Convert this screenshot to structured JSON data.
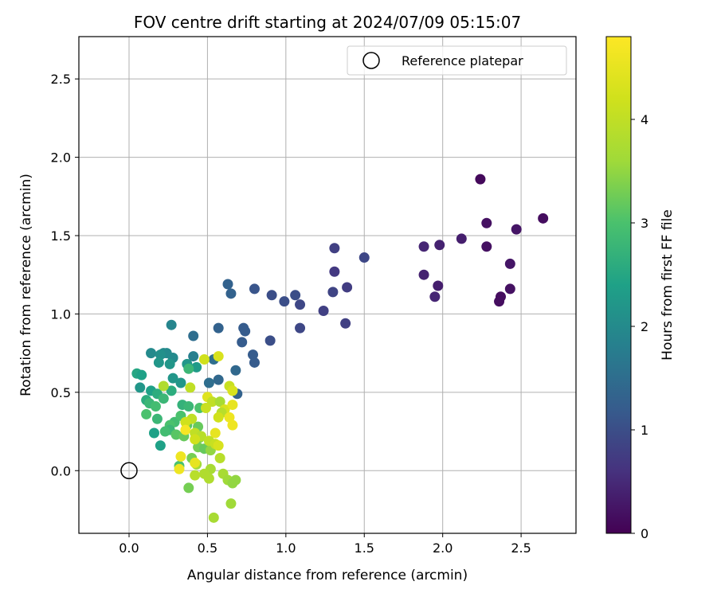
{
  "chart_data": {
    "type": "scatter",
    "title": "FOV centre drift starting at 2024/07/09 05:15:07",
    "xlabel": "Angular distance from reference (arcmin)",
    "ylabel": "Rotation from reference (arcmin)",
    "xlim": [
      -0.32,
      2.85
    ],
    "ylim": [
      -0.4,
      2.77
    ],
    "xticks": [
      "0.0",
      "0.5",
      "1.0",
      "1.5",
      "2.0",
      "2.5"
    ],
    "yticks": [
      "0.0",
      "0.5",
      "1.0",
      "1.5",
      "2.0",
      "2.5"
    ],
    "grid": true,
    "legend": {
      "placement": "top-right",
      "label": "Reference platepar"
    },
    "reference_point": {
      "x": 0.0,
      "y": 0.0
    },
    "colorbar": {
      "label": "Hours from first FF file",
      "range": [
        0,
        4.8
      ],
      "ticks": [
        "0",
        "1",
        "2",
        "3",
        "4"
      ],
      "colormap": "viridis"
    },
    "points": [
      {
        "x": 2.24,
        "y": 1.86,
        "c": 0.1
      },
      {
        "x": 2.64,
        "y": 1.61,
        "c": 0.15
      },
      {
        "x": 2.28,
        "y": 1.58,
        "c": 0.2
      },
      {
        "x": 2.47,
        "y": 1.54,
        "c": 0.25
      },
      {
        "x": 2.12,
        "y": 1.48,
        "c": 0.35
      },
      {
        "x": 1.98,
        "y": 1.44,
        "c": 0.4
      },
      {
        "x": 2.28,
        "y": 1.43,
        "c": 0.2
      },
      {
        "x": 1.88,
        "y": 1.43,
        "c": 0.45
      },
      {
        "x": 2.43,
        "y": 1.32,
        "c": 0.25
      },
      {
        "x": 1.88,
        "y": 1.25,
        "c": 0.4
      },
      {
        "x": 1.97,
        "y": 1.18,
        "c": 0.35
      },
      {
        "x": 2.43,
        "y": 1.16,
        "c": 0.2
      },
      {
        "x": 1.95,
        "y": 1.11,
        "c": 0.45
      },
      {
        "x": 2.37,
        "y": 1.11,
        "c": 0.15
      },
      {
        "x": 2.36,
        "y": 1.08,
        "c": 0.15
      },
      {
        "x": 1.31,
        "y": 1.42,
        "c": 0.8
      },
      {
        "x": 1.5,
        "y": 1.36,
        "c": 0.9
      },
      {
        "x": 1.31,
        "y": 1.27,
        "c": 0.7
      },
      {
        "x": 1.39,
        "y": 1.17,
        "c": 0.75
      },
      {
        "x": 1.3,
        "y": 1.14,
        "c": 0.85
      },
      {
        "x": 0.63,
        "y": 1.19,
        "c": 1.3
      },
      {
        "x": 0.8,
        "y": 1.16,
        "c": 1.1
      },
      {
        "x": 0.65,
        "y": 1.13,
        "c": 1.3
      },
      {
        "x": 1.06,
        "y": 1.12,
        "c": 1.0
      },
      {
        "x": 0.91,
        "y": 1.12,
        "c": 1.0
      },
      {
        "x": 0.99,
        "y": 1.08,
        "c": 1.0
      },
      {
        "x": 1.09,
        "y": 1.06,
        "c": 0.9
      },
      {
        "x": 1.24,
        "y": 1.02,
        "c": 0.8
      },
      {
        "x": 1.38,
        "y": 0.94,
        "c": 0.8
      },
      {
        "x": 0.27,
        "y": 0.93,
        "c": 1.9
      },
      {
        "x": 0.73,
        "y": 0.91,
        "c": 1.2
      },
      {
        "x": 0.57,
        "y": 0.91,
        "c": 1.3
      },
      {
        "x": 1.09,
        "y": 0.91,
        "c": 0.9
      },
      {
        "x": 0.74,
        "y": 0.89,
        "c": 1.2
      },
      {
        "x": 0.41,
        "y": 0.86,
        "c": 1.5
      },
      {
        "x": 0.9,
        "y": 0.83,
        "c": 1.0
      },
      {
        "x": 0.72,
        "y": 0.82,
        "c": 1.2
      },
      {
        "x": 0.79,
        "y": 0.74,
        "c": 1.2
      },
      {
        "x": 0.8,
        "y": 0.69,
        "c": 1.2
      },
      {
        "x": 0.68,
        "y": 0.64,
        "c": 1.4
      },
      {
        "x": 0.57,
        "y": 0.58,
        "c": 1.4
      },
      {
        "x": 0.51,
        "y": 0.56,
        "c": 1.5
      },
      {
        "x": 0.69,
        "y": 0.49,
        "c": 1.3
      },
      {
        "x": 0.54,
        "y": 0.71,
        "c": 1.5
      },
      {
        "x": 0.14,
        "y": 0.75,
        "c": 2.0
      },
      {
        "x": 0.22,
        "y": 0.75,
        "c": 2.0
      },
      {
        "x": 0.24,
        "y": 0.75,
        "c": 2.0
      },
      {
        "x": 0.2,
        "y": 0.74,
        "c": 2.1
      },
      {
        "x": 0.41,
        "y": 0.73,
        "c": 1.8
      },
      {
        "x": 0.28,
        "y": 0.72,
        "c": 2.0
      },
      {
        "x": 0.19,
        "y": 0.69,
        "c": 2.2
      },
      {
        "x": 0.26,
        "y": 0.68,
        "c": 2.2
      },
      {
        "x": 0.37,
        "y": 0.68,
        "c": 2.2
      },
      {
        "x": 0.43,
        "y": 0.66,
        "c": 2.3
      },
      {
        "x": 0.38,
        "y": 0.65,
        "c": 2.8
      },
      {
        "x": 0.05,
        "y": 0.62,
        "c": 2.5
      },
      {
        "x": 0.08,
        "y": 0.61,
        "c": 2.4
      },
      {
        "x": 0.28,
        "y": 0.59,
        "c": 2.2
      },
      {
        "x": 0.33,
        "y": 0.56,
        "c": 2.2
      },
      {
        "x": 0.07,
        "y": 0.53,
        "c": 2.2
      },
      {
        "x": 0.14,
        "y": 0.51,
        "c": 2.4
      },
      {
        "x": 0.27,
        "y": 0.51,
        "c": 2.6
      },
      {
        "x": 0.18,
        "y": 0.49,
        "c": 2.6
      },
      {
        "x": 0.22,
        "y": 0.46,
        "c": 2.8
      },
      {
        "x": 0.11,
        "y": 0.45,
        "c": 2.6
      },
      {
        "x": 0.13,
        "y": 0.43,
        "c": 2.8
      },
      {
        "x": 0.17,
        "y": 0.41,
        "c": 2.9
      },
      {
        "x": 0.34,
        "y": 0.42,
        "c": 2.7
      },
      {
        "x": 0.38,
        "y": 0.41,
        "c": 2.8
      },
      {
        "x": 0.45,
        "y": 0.4,
        "c": 3.0
      },
      {
        "x": 0.11,
        "y": 0.36,
        "c": 3.0
      },
      {
        "x": 0.18,
        "y": 0.33,
        "c": 2.8
      },
      {
        "x": 0.29,
        "y": 0.31,
        "c": 2.9
      },
      {
        "x": 0.33,
        "y": 0.35,
        "c": 3.0
      },
      {
        "x": 0.26,
        "y": 0.29,
        "c": 3.0
      },
      {
        "x": 0.37,
        "y": 0.29,
        "c": 3.1
      },
      {
        "x": 0.44,
        "y": 0.28,
        "c": 3.2
      },
      {
        "x": 0.26,
        "y": 0.26,
        "c": 2.8
      },
      {
        "x": 0.23,
        "y": 0.25,
        "c": 2.9
      },
      {
        "x": 0.16,
        "y": 0.24,
        "c": 2.4
      },
      {
        "x": 0.3,
        "y": 0.23,
        "c": 3.1
      },
      {
        "x": 0.35,
        "y": 0.22,
        "c": 3.2
      },
      {
        "x": 0.45,
        "y": 0.21,
        "c": 3.4
      },
      {
        "x": 0.2,
        "y": 0.16,
        "c": 2.4
      },
      {
        "x": 0.44,
        "y": 0.15,
        "c": 3.3
      },
      {
        "x": 0.48,
        "y": 0.14,
        "c": 3.2
      },
      {
        "x": 0.52,
        "y": 0.13,
        "c": 3.5
      },
      {
        "x": 0.4,
        "y": 0.08,
        "c": 3.3
      },
      {
        "x": 0.43,
        "y": 0.04,
        "c": 3.6
      },
      {
        "x": 0.32,
        "y": 0.03,
        "c": 3.0
      },
      {
        "x": 0.52,
        "y": 0.01,
        "c": 3.7
      },
      {
        "x": 0.48,
        "y": -0.02,
        "c": 3.8
      },
      {
        "x": 0.42,
        "y": -0.03,
        "c": 3.9
      },
      {
        "x": 0.51,
        "y": -0.05,
        "c": 3.8
      },
      {
        "x": 0.6,
        "y": -0.02,
        "c": 3.7
      },
      {
        "x": 0.63,
        "y": -0.06,
        "c": 3.6
      },
      {
        "x": 0.68,
        "y": -0.06,
        "c": 3.5
      },
      {
        "x": 0.66,
        "y": -0.08,
        "c": 3.5
      },
      {
        "x": 0.38,
        "y": -0.11,
        "c": 3.3
      },
      {
        "x": 0.65,
        "y": -0.21,
        "c": 3.6
      },
      {
        "x": 0.54,
        "y": -0.3,
        "c": 3.7
      },
      {
        "x": 0.57,
        "y": 0.73,
        "c": 4.3
      },
      {
        "x": 0.48,
        "y": 0.71,
        "c": 4.2
      },
      {
        "x": 0.39,
        "y": 0.53,
        "c": 4.0
      },
      {
        "x": 0.22,
        "y": 0.54,
        "c": 3.8
      },
      {
        "x": 0.5,
        "y": 0.47,
        "c": 4.4
      },
      {
        "x": 0.53,
        "y": 0.44,
        "c": 4.0
      },
      {
        "x": 0.58,
        "y": 0.44,
        "c": 3.7
      },
      {
        "x": 0.64,
        "y": 0.54,
        "c": 4.1
      },
      {
        "x": 0.66,
        "y": 0.51,
        "c": 4.3
      },
      {
        "x": 0.49,
        "y": 0.4,
        "c": 4.1
      },
      {
        "x": 0.61,
        "y": 0.39,
        "c": 4.3
      },
      {
        "x": 0.66,
        "y": 0.42,
        "c": 4.5
      },
      {
        "x": 0.59,
        "y": 0.37,
        "c": 3.9
      },
      {
        "x": 0.57,
        "y": 0.34,
        "c": 4.2
      },
      {
        "x": 0.64,
        "y": 0.34,
        "c": 4.6
      },
      {
        "x": 0.66,
        "y": 0.29,
        "c": 4.6
      },
      {
        "x": 0.4,
        "y": 0.33,
        "c": 4.0
      },
      {
        "x": 0.36,
        "y": 0.31,
        "c": 4.2
      },
      {
        "x": 0.36,
        "y": 0.26,
        "c": 4.7
      },
      {
        "x": 0.42,
        "y": 0.24,
        "c": 4.0
      },
      {
        "x": 0.55,
        "y": 0.24,
        "c": 4.5
      },
      {
        "x": 0.46,
        "y": 0.22,
        "c": 3.9
      },
      {
        "x": 0.42,
        "y": 0.2,
        "c": 4.2
      },
      {
        "x": 0.51,
        "y": 0.19,
        "c": 4.0
      },
      {
        "x": 0.55,
        "y": 0.17,
        "c": 4.1
      },
      {
        "x": 0.57,
        "y": 0.16,
        "c": 4.3
      },
      {
        "x": 0.33,
        "y": 0.09,
        "c": 4.6
      },
      {
        "x": 0.58,
        "y": 0.08,
        "c": 3.9
      },
      {
        "x": 0.42,
        "y": 0.05,
        "c": 4.5
      },
      {
        "x": 0.32,
        "y": 0.01,
        "c": 4.6
      }
    ]
  }
}
